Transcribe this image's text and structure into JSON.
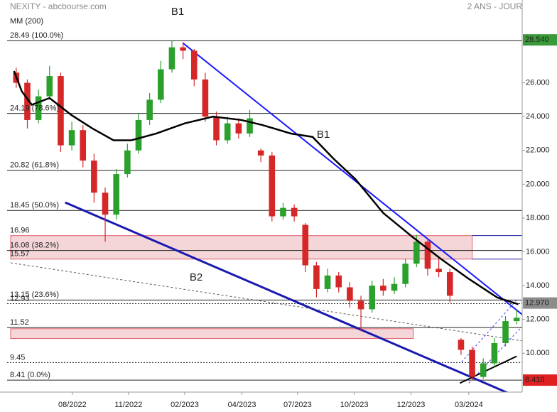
{
  "header": {
    "title": "NEXITY - abcbourse.com",
    "period": "2 ANS - JOUR"
  },
  "chart_data": {
    "type": "candlestick",
    "x": [
      1,
      3,
      5,
      7,
      9,
      11,
      13,
      15,
      17,
      19,
      21,
      23,
      25,
      27,
      29,
      31,
      33,
      35,
      37,
      39,
      41,
      43,
      45,
      47,
      49,
      51,
      53,
      55,
      57,
      59,
      61,
      63,
      65,
      67,
      69,
      71,
      73,
      75,
      77,
      79,
      81,
      83,
      85,
      87,
      89,
      91
    ],
    "open": [
      26.6,
      26.0,
      23.8,
      25.2,
      26.4,
      22.3,
      23.2,
      21.4,
      19.5,
      18.2,
      20.6,
      22.0,
      23.8,
      25.0,
      26.8,
      28.1,
      27.9,
      26.2,
      24.0,
      22.6,
      23.6,
      23.0,
      22.0,
      21.7,
      18.1,
      18.6,
      17.6,
      15.2,
      13.8,
      14.6,
      13.9,
      13.1,
      12.6,
      14.0,
      13.7,
      14.1,
      15.3,
      16.6,
      15.0,
      14.8,
      10.8,
      10.2,
      8.6,
      9.4,
      10.6,
      11.9
    ],
    "high": [
      26.9,
      26.2,
      25.6,
      27.0,
      26.6,
      23.7,
      23.5,
      21.8,
      19.8,
      20.9,
      22.4,
      24.2,
      25.4,
      27.3,
      28.49,
      28.4,
      28.0,
      26.6,
      24.3,
      24.0,
      23.9,
      24.4,
      22.1,
      21.9,
      18.9,
      18.8,
      17.7,
      15.4,
      15.0,
      14.8,
      14.2,
      13.4,
      14.3,
      14.4,
      14.5,
      15.6,
      17.0,
      16.8,
      15.6,
      15.0,
      10.9,
      10.4,
      9.7,
      10.9,
      12.2,
      12.6
    ],
    "low": [
      25.7,
      23.3,
      23.6,
      25.0,
      21.9,
      22.0,
      21.0,
      18.9,
      16.6,
      17.9,
      20.4,
      21.8,
      23.5,
      24.8,
      26.6,
      27.4,
      25.8,
      23.7,
      22.3,
      22.4,
      22.7,
      22.8,
      21.3,
      17.8,
      17.9,
      17.8,
      14.8,
      13.3,
      13.6,
      13.6,
      12.7,
      11.3,
      12.4,
      13.4,
      13.5,
      13.9,
      15.1,
      14.6,
      14.5,
      13.0,
      9.9,
      8.41,
      8.5,
      9.2,
      10.4,
      11.7
    ],
    "close": [
      26.0,
      23.8,
      25.2,
      26.4,
      22.3,
      23.2,
      21.4,
      19.5,
      18.2,
      20.6,
      22.0,
      23.8,
      25.0,
      26.8,
      28.1,
      27.9,
      26.2,
      24.0,
      22.6,
      23.6,
      23.0,
      23.9,
      21.7,
      18.1,
      18.6,
      18.1,
      15.2,
      13.8,
      14.6,
      13.9,
      13.1,
      12.6,
      14.0,
      13.7,
      14.1,
      15.3,
      16.6,
      15.0,
      14.8,
      13.4,
      10.2,
      8.6,
      9.4,
      10.6,
      11.9,
      12.1
    ],
    "up_color": "#2ca02c",
    "down_color": "#d62728",
    "xlim": [
      0,
      92
    ],
    "ylim": [
      7.7,
      30.9
    ],
    "xticks": [
      {
        "value": 11.1,
        "label": "08/2022"
      },
      {
        "value": 21.2,
        "label": "11/2022"
      },
      {
        "value": 31.3,
        "label": "02/2023"
      },
      {
        "value": 41.6,
        "label": "04/2023"
      },
      {
        "value": 51.6,
        "label": "07/2023"
      },
      {
        "value": 61.8,
        "label": "10/2023"
      },
      {
        "value": 72,
        "label": "12/2023"
      },
      {
        "value": 82.4,
        "label": "03/2024"
      }
    ],
    "yticks": [
      {
        "value": 10,
        "label": "10.000"
      },
      {
        "value": 12,
        "label": "12.000"
      },
      {
        "value": 14,
        "label": "14.000"
      },
      {
        "value": 16,
        "label": "16.000"
      },
      {
        "value": 18,
        "label": "18.000"
      },
      {
        "value": 20,
        "label": "20.000"
      },
      {
        "value": 22,
        "label": "22.000"
      },
      {
        "value": 24,
        "label": "24.000"
      },
      {
        "value": 26,
        "label": "26.000"
      }
    ],
    "ma": {
      "name": "MM (200)",
      "color": "#000000",
      "x": [
        0.6,
        2,
        3.8,
        7,
        10.9,
        14.7,
        18.5,
        21.7,
        26.2,
        31.3,
        36.4,
        41.5,
        45.3,
        50.4,
        54.3,
        58.1,
        62,
        67,
        72.2,
        77.3,
        82.4,
        87.5,
        91.3
      ],
      "values": [
        26.7,
        25.5,
        24.7,
        25.1,
        24.1,
        23.3,
        22.6,
        22.6,
        23.0,
        23.6,
        24.0,
        23.8,
        23.5,
        23.0,
        22.8,
        21.5,
        20.3,
        18.3,
        16.9,
        15.6,
        14.4,
        13.3,
        12.9
      ]
    },
    "levels": [
      {
        "value": 28.49,
        "label": "28.49  (100.0%)",
        "line": "solid",
        "color": "#222222"
      },
      {
        "value": 24.19,
        "label": "24.19  (78.6%)",
        "line": "solid",
        "color": "#222222"
      },
      {
        "value": 20.82,
        "label": "20.82  (61.8%)",
        "line": "solid",
        "color": "#222222"
      },
      {
        "value": 18.45,
        "label": "18.45  (50.0%)",
        "line": "solid",
        "color": "#222222"
      },
      {
        "value": 16.96,
        "label": "16.96",
        "line": "none",
        "color": "#1a1a9a"
      },
      {
        "value": 16.08,
        "label": "16.08  (38.2%)",
        "line": "solid",
        "color": "#222222"
      },
      {
        "value": 15.57,
        "label": "15.57",
        "line": "none",
        "color": "#1a1a9a"
      },
      {
        "value": 13.15,
        "label": "13.15  (23.6%)",
        "line": "solid",
        "color": "#222222"
      },
      {
        "value": 12.93,
        "label": "12.93",
        "line": "dotted",
        "color": "#222222"
      },
      {
        "value": 11.52,
        "label": "11.52",
        "line": "solid",
        "color": "#222222"
      },
      {
        "value": 9.45,
        "label": "9.45",
        "line": "dotted",
        "color": "#222222"
      },
      {
        "value": 8.41,
        "label": "8.41  (0.0%)",
        "line": "solid",
        "color": "#222222"
      }
    ],
    "zones": [
      {
        "low": 15.57,
        "high": 16.96,
        "x": [
          0,
          83
        ]
      },
      {
        "low": 10.87,
        "high": 11.45,
        "x": [
          0,
          72.4
        ]
      }
    ],
    "trendlines": [
      {
        "name": "B1",
        "color": "#1a1aff",
        "width": 2,
        "x": [
          31,
          92
        ],
        "y": [
          28.35,
          12.29
        ]
      },
      {
        "name": "B2",
        "color": "#1a1ab0",
        "width": 3,
        "x": [
          9.8,
          89.8
        ],
        "y": [
          18.92,
          7.6
        ]
      },
      {
        "color": "#000000",
        "width": 2,
        "x": [
          80.8,
          91
        ],
        "y": [
          8.23,
          9.82
        ]
      },
      {
        "color": "#4040ff",
        "width": 1,
        "dash": true,
        "x": [
          82.4,
          92
        ],
        "y": [
          8.23,
          11.58
        ]
      },
      {
        "color": "#4040ff",
        "width": 1,
        "dash": true,
        "x": [
          81.1,
          91.3
        ],
        "y": [
          9.48,
          13.26
        ]
      },
      {
        "color": "#555555",
        "width": 1,
        "dash": true,
        "x": [
          0,
          92
        ],
        "y": [
          15.35,
          10.73
        ]
      }
    ],
    "price_labels": [
      {
        "value": 28.54,
        "label": "28.540",
        "color": "#3a9a3a"
      },
      {
        "value": 12.97,
        "label": "12.970",
        "color": "#8c8c8c"
      },
      {
        "value": 8.41,
        "label": "8.410",
        "color": "#e02020"
      }
    ]
  }
}
